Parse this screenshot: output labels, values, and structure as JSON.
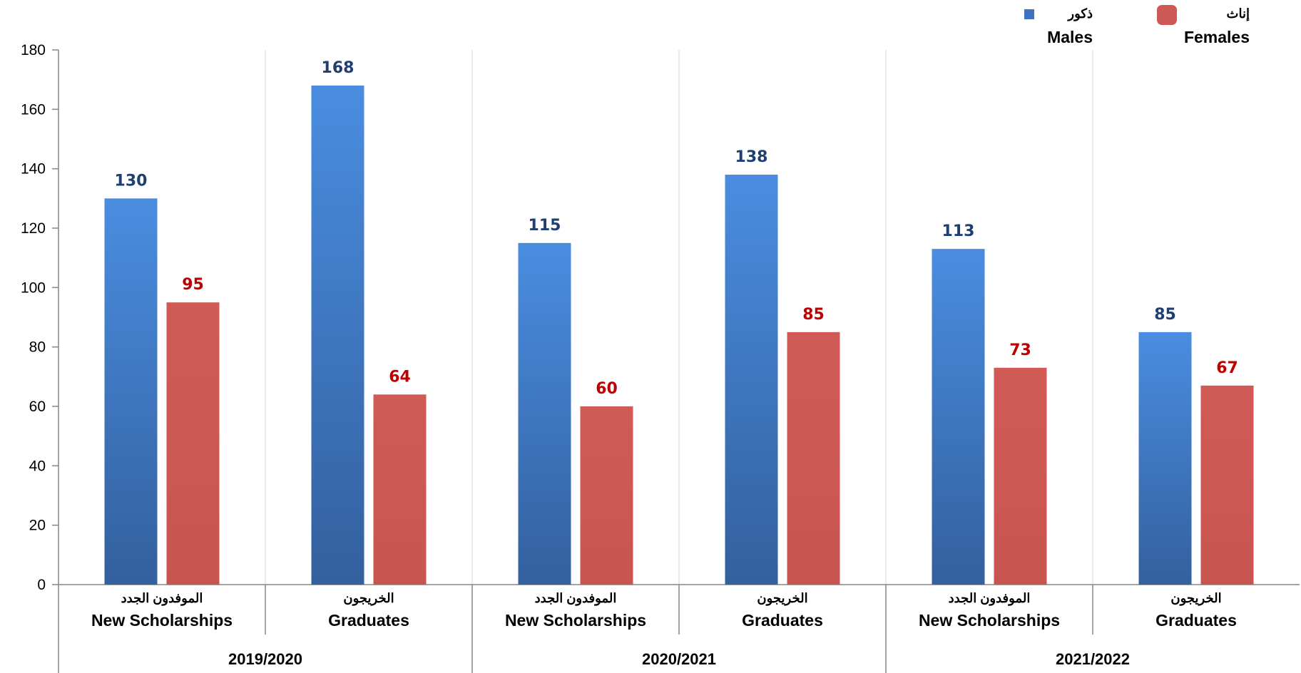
{
  "chart_data": {
    "type": "bar",
    "ylim": [
      0,
      180
    ],
    "yticks": [
      0,
      20,
      40,
      60,
      80,
      100,
      120,
      140,
      160,
      180
    ],
    "grid": "vertical",
    "legend_position": "top-right",
    "groups": [
      {
        "label": "2019/2020",
        "categories": [
          {
            "ar": "الموفدون الجدد",
            "en": "New Scholarships"
          },
          {
            "ar": "الخريجون",
            "en": "Graduates"
          }
        ]
      },
      {
        "label": "2020/2021",
        "categories": [
          {
            "ar": "الموفدون الجدد",
            "en": "New Scholarships"
          },
          {
            "ar": "الخريجون",
            "en": "Graduates"
          }
        ]
      },
      {
        "label": "2021/2022",
        "categories": [
          {
            "ar": "الموفدون الجدد",
            "en": "New Scholarships"
          },
          {
            "ar": "الخريجون",
            "en": "Graduates"
          }
        ]
      }
    ],
    "series": [
      {
        "name_ar": "ذكور",
        "name_en": "Males",
        "color": "#3d72c0",
        "label_color": "#1f3f73",
        "values": [
          130,
          168,
          115,
          138,
          113,
          85
        ]
      },
      {
        "name_ar": "إناث",
        "name_en": "Females",
        "color": "#cd5855",
        "label_color": "#c00000",
        "values": [
          95,
          64,
          60,
          85,
          73,
          67
        ]
      }
    ]
  }
}
